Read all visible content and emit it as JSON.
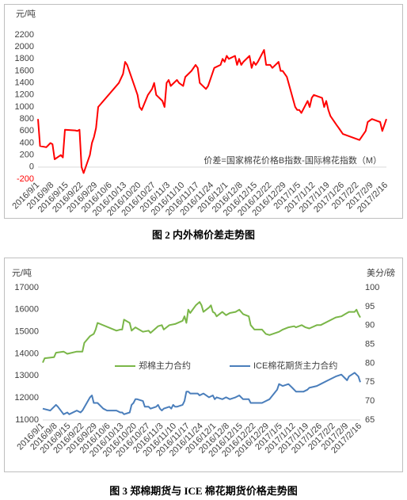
{
  "chart_data": [
    {
      "type": "line",
      "y_label": "元/吨",
      "color": "#ff0000",
      "negative_tick_color": "#ff0000",
      "grid": false,
      "annotation": "价差=国家棉花价格B指数-国际棉花指数（M）",
      "caption": "图 2  内外棉价差走势图",
      "ylim": [
        -200,
        2200
      ],
      "yticks": [
        -200,
        0,
        200,
        400,
        600,
        800,
        1000,
        1200,
        1400,
        1600,
        1800,
        2000,
        2200
      ],
      "xticks": [
        "2016/9/1",
        "2016/9/8",
        "2016/9/15",
        "2016/9/22",
        "2016/9/29",
        "2016/10/6",
        "2016/10/13",
        "2016/10/20",
        "2016/10/27",
        "2016/11/3",
        "2016/11/10",
        "2016/11/17",
        "2016/11/24",
        "2016/12/1",
        "2016/12/8",
        "2016/12/15",
        "2016/12/22",
        "2016/12/29",
        "2017/1/5",
        "2017/1/12",
        "2017/1/19",
        "2017/1/26",
        "2017/2/2",
        "2017/2/9",
        "2017/2/16"
      ],
      "x": [
        "2016/9/1",
        "2016/9/2",
        "2016/9/5",
        "2016/9/7",
        "2016/9/8",
        "2016/9/9",
        "2016/9/12",
        "2016/9/13",
        "2016/9/14",
        "2016/9/19",
        "2016/9/20",
        "2016/9/21",
        "2016/9/22",
        "2016/9/23",
        "2016/9/26",
        "2016/9/27",
        "2016/9/28",
        "2016/9/29",
        "2016/9/30",
        "2016/10/10",
        "2016/10/12",
        "2016/10/13",
        "2016/10/14",
        "2016/10/17",
        "2016/10/19",
        "2016/10/20",
        "2016/10/21",
        "2016/10/24",
        "2016/10/26",
        "2016/10/27",
        "2016/10/28",
        "2016/10/31",
        "2016/11/1",
        "2016/11/2",
        "2016/11/3",
        "2016/11/4",
        "2016/11/7",
        "2016/11/8",
        "2016/11/10",
        "2016/11/11",
        "2016/11/14",
        "2016/11/16",
        "2016/11/17",
        "2016/11/18",
        "2016/11/21",
        "2016/11/22",
        "2016/11/24",
        "2016/11/25",
        "2016/11/28",
        "2016/11/29",
        "2016/11/30",
        "2016/12/1",
        "2016/12/2",
        "2016/12/5",
        "2016/12/6",
        "2016/12/7",
        "2016/12/8",
        "2016/12/9",
        "2016/12/12",
        "2016/12/13",
        "2016/12/14",
        "2016/12/15",
        "2016/12/16",
        "2016/12/19",
        "2016/12/20",
        "2016/12/22",
        "2016/12/23",
        "2016/12/26",
        "2016/12/27",
        "2016/12/28",
        "2016/12/30",
        "2017/1/3",
        "2017/1/4",
        "2017/1/5",
        "2017/1/6",
        "2017/1/9",
        "2017/1/10",
        "2017/1/11",
        "2017/1/12",
        "2017/1/16",
        "2017/1/17",
        "2017/1/18",
        "2017/1/19",
        "2017/1/20",
        "2017/1/23",
        "2017/1/24",
        "2017/1/26",
        "2017/2/3",
        "2017/2/6",
        "2017/2/7",
        "2017/2/9",
        "2017/2/13",
        "2017/2/14",
        "2017/2/15",
        "2017/2/16"
      ],
      "values": [
        800,
        350,
        330,
        400,
        380,
        130,
        200,
        160,
        620,
        610,
        600,
        620,
        0,
        -100,
        200,
        400,
        500,
        650,
        1000,
        1400,
        1550,
        1750,
        1700,
        1400,
        1200,
        1000,
        950,
        1200,
        1300,
        1400,
        1200,
        1100,
        1000,
        1400,
        1450,
        1350,
        1450,
        1400,
        1350,
        1500,
        1600,
        1700,
        1650,
        1400,
        1300,
        1350,
        1550,
        1650,
        1700,
        1800,
        1750,
        1850,
        1800,
        1850,
        1700,
        1800,
        1700,
        1750,
        1850,
        1650,
        1750,
        1700,
        1750,
        1950,
        1700,
        1700,
        1650,
        1750,
        1600,
        1600,
        1500,
        1000,
        950,
        950,
        900,
        1100,
        1000,
        1150,
        1200,
        1150,
        1000,
        1100,
        950,
        850,
        700,
        650,
        550,
        450,
        600,
        750,
        800,
        750,
        600,
        700,
        800
      ]
    },
    {
      "type": "line",
      "y_label": "元/吨",
      "y2_label": "美分/磅",
      "grid": false,
      "caption": "图 3  郑棉期货与 ICE 棉花期货价格走势图",
      "ylim": [
        11000,
        17000
      ],
      "yticks": [
        11000,
        12000,
        13000,
        14000,
        15000,
        16000,
        17000
      ],
      "y2lim": [
        65,
        100
      ],
      "y2ticks": [
        65,
        70,
        75,
        80,
        85,
        90,
        95,
        100
      ],
      "xticks": [
        "2016/9/1",
        "2016/9/8",
        "2016/9/15",
        "2016/9/22",
        "2016/9/29",
        "2016/10/6",
        "2016/10/13",
        "2016/10/20",
        "2016/10/27",
        "2016/11/3",
        "2016/11/10",
        "2016/11/17",
        "2016/11/24",
        "2016/12/1",
        "2016/12/8",
        "2016/12/15",
        "2016/12/22",
        "2016/12/29",
        "2017/1/5",
        "2017/1/12",
        "2017/1/19",
        "2017/1/26",
        "2017/2/2",
        "2017/2/9",
        "2017/2/16"
      ],
      "series": [
        {
          "name": "郑棉主力合约",
          "color": "#7ab648",
          "x": [
            "2016/9/1",
            "2016/9/2",
            "2016/9/7",
            "2016/9/8",
            "2016/9/12",
            "2016/9/14",
            "2016/9/19",
            "2016/9/22",
            "2016/9/23",
            "2016/9/26",
            "2016/9/28",
            "2016/9/29",
            "2016/9/30",
            "2016/10/10",
            "2016/10/12",
            "2016/10/13",
            "2016/10/14",
            "2016/10/17",
            "2016/10/18",
            "2016/10/20",
            "2016/10/24",
            "2016/10/27",
            "2016/10/28",
            "2016/11/1",
            "2016/11/3",
            "2016/11/4",
            "2016/11/7",
            "2016/11/10",
            "2016/11/14",
            "2016/11/15",
            "2016/11/16",
            "2016/11/17",
            "2016/11/18",
            "2016/11/21",
            "2016/11/23",
            "2016/11/24",
            "2016/11/25",
            "2016/11/28",
            "2016/11/29",
            "2016/11/30",
            "2016/12/1",
            "2016/12/2",
            "2016/12/5",
            "2016/12/7",
            "2016/12/9",
            "2016/12/12",
            "2016/12/14",
            "2016/12/16",
            "2016/12/19",
            "2016/12/20",
            "2016/12/22",
            "2016/12/26",
            "2016/12/28",
            "2016/12/30",
            "2017/1/4",
            "2017/1/6",
            "2017/1/9",
            "2017/1/12",
            "2017/1/13",
            "2017/1/16",
            "2017/1/18",
            "2017/1/20",
            "2017/1/24",
            "2017/1/26",
            "2017/2/3",
            "2017/2/6",
            "2017/2/8",
            "2017/2/10",
            "2017/2/13",
            "2017/2/14",
            "2017/2/15",
            "2017/2/16"
          ],
          "values": [
            13600,
            13800,
            13850,
            14050,
            14100,
            14000,
            14100,
            14100,
            14500,
            14800,
            14900,
            15100,
            15400,
            15050,
            15100,
            15100,
            15550,
            15400,
            15050,
            15200,
            15000,
            15050,
            14950,
            15250,
            15300,
            15100,
            15300,
            15350,
            15500,
            15700,
            15400,
            16000,
            15850,
            16200,
            16350,
            16200,
            15900,
            16100,
            16200,
            15900,
            15850,
            15700,
            15900,
            15750,
            15850,
            15900,
            16000,
            15800,
            15700,
            15300,
            15100,
            15100,
            14900,
            14850,
            15000,
            15100,
            15200,
            15250,
            15200,
            15300,
            15200,
            15150,
            15300,
            15300,
            15650,
            15700,
            15800,
            15900,
            15900,
            16000,
            15800,
            15650
          ]
        },
        {
          "name": "ICE棉花期货主力合约",
          "color": "#4a7ebb",
          "axis": "y2",
          "x": [
            "2016/9/1",
            "2016/9/5",
            "2016/9/7",
            "2016/9/8",
            "2016/9/9",
            "2016/9/12",
            "2016/9/14",
            "2016/9/15",
            "2016/9/19",
            "2016/9/21",
            "2016/9/22",
            "2016/9/26",
            "2016/9/27",
            "2016/9/28",
            "2016/9/29",
            "2016/9/30",
            "2016/10/3",
            "2016/10/5",
            "2016/10/10",
            "2016/10/12",
            "2016/10/13",
            "2016/10/14",
            "2016/10/17",
            "2016/10/18",
            "2016/10/19",
            "2016/10/20",
            "2016/10/21",
            "2016/10/24",
            "2016/10/25",
            "2016/10/27",
            "2016/10/28",
            "2016/10/31",
            "2016/11/1",
            "2016/11/2",
            "2016/11/3",
            "2016/11/4",
            "2016/11/7",
            "2016/11/8",
            "2016/11/9",
            "2016/11/10",
            "2016/11/11",
            "2016/11/14",
            "2016/11/15",
            "2016/11/16",
            "2016/11/17",
            "2016/11/18",
            "2016/11/21",
            "2016/11/22",
            "2016/11/23",
            "2016/11/25",
            "2016/11/28",
            "2016/11/30",
            "2016/12/1",
            "2016/12/2",
            "2016/12/5",
            "2016/12/7",
            "2016/12/9",
            "2016/12/12",
            "2016/12/14",
            "2016/12/16",
            "2016/12/19",
            "2016/12/20",
            "2016/12/22",
            "2016/12/26",
            "2016/12/28",
            "2016/12/30",
            "2017/1/3",
            "2017/1/4",
            "2017/1/6",
            "2017/1/9",
            "2017/1/11",
            "2017/1/13",
            "2017/1/17",
            "2017/1/19",
            "2017/1/20",
            "2017/1/24",
            "2017/1/26",
            "2017/1/30",
            "2017/2/1",
            "2017/2/3",
            "2017/2/6",
            "2017/2/8",
            "2017/2/9",
            "2017/2/10",
            "2017/2/13",
            "2017/2/14",
            "2017/2/15",
            "2017/2/16"
          ],
          "values": [
            68,
            67.5,
            68.5,
            69,
            68.5,
            66.5,
            67,
            66.5,
            67.5,
            67,
            67.5,
            71,
            71.5,
            69.5,
            69.5,
            69.5,
            68,
            67.5,
            67.5,
            67,
            67,
            66.5,
            67,
            69,
            69.5,
            70.5,
            70.5,
            70,
            68.5,
            68.5,
            68,
            68.5,
            69,
            68,
            67.5,
            68,
            68.5,
            68,
            69,
            68.5,
            68.5,
            69,
            70,
            72.5,
            72.5,
            72,
            72,
            72,
            71.5,
            72,
            71,
            71.5,
            70.5,
            71,
            70.5,
            71,
            70.5,
            71,
            71.5,
            70.5,
            70.5,
            69.5,
            69.5,
            69.5,
            70,
            70.5,
            73,
            74.5,
            74,
            74.5,
            73.5,
            72.5,
            72.5,
            73,
            73.5,
            74,
            74.5,
            75.5,
            76,
            76.5,
            77,
            76,
            75.5,
            76.5,
            77.5,
            77,
            76.5,
            75
          ]
        }
      ]
    }
  ]
}
